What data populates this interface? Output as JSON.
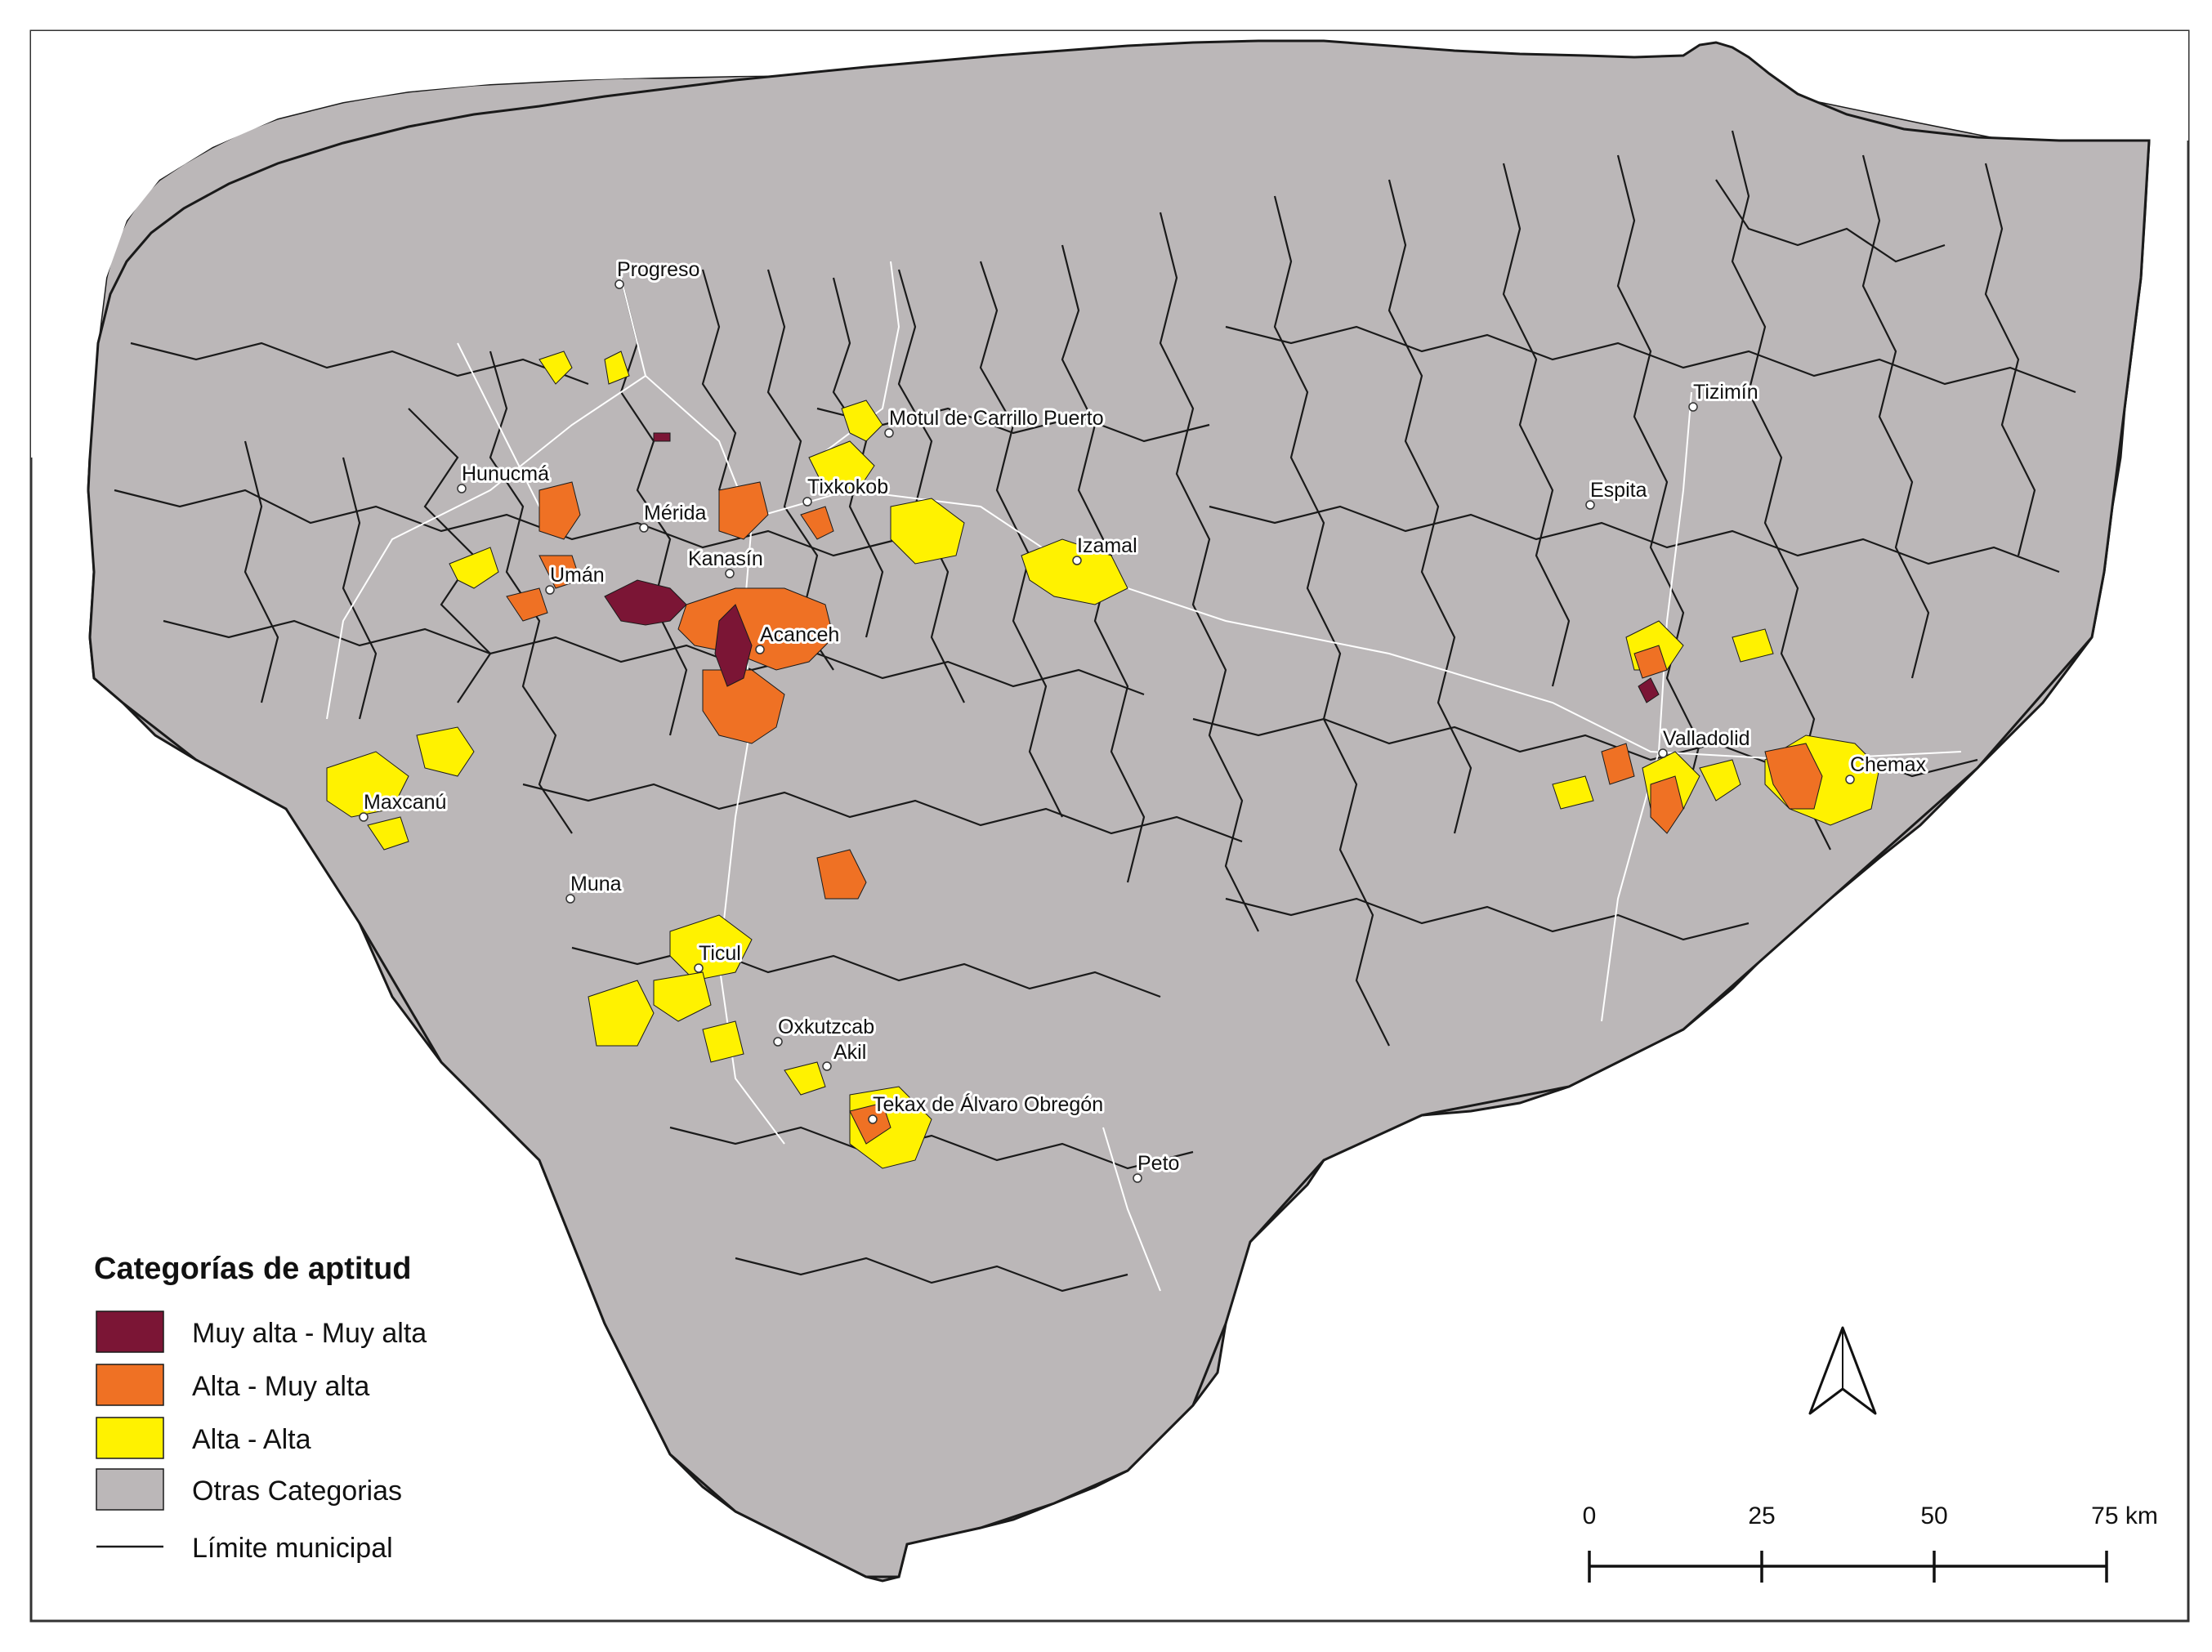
{
  "legend": {
    "title": "Categorías de aptitud",
    "items": [
      {
        "label": "Muy alta - Muy alta",
        "color": "#7b1535"
      },
      {
        "label": "Alta - Muy alta",
        "color": "#ef7124"
      },
      {
        "label": "Alta - Alta",
        "color": "#fff200"
      },
      {
        "label": "Otras Categorias",
        "color": "#bbb7b8"
      }
    ],
    "boundary_label": "Límite municipal"
  },
  "scale_bar": {
    "ticks": [
      "0",
      "25",
      "50",
      "75 km"
    ]
  },
  "north_arrow": {
    "icon": "north-arrow-icon"
  },
  "places": [
    {
      "name": "Progreso"
    },
    {
      "name": "Motul de Carrillo Puerto"
    },
    {
      "name": "Tizimín"
    },
    {
      "name": "Hunucmá"
    },
    {
      "name": "Mérida"
    },
    {
      "name": "Tixkokob"
    },
    {
      "name": "Espita"
    },
    {
      "name": "Kanasín"
    },
    {
      "name": "Izamal"
    },
    {
      "name": "Umán"
    },
    {
      "name": "Acanceh"
    },
    {
      "name": "Valladolid"
    },
    {
      "name": "Chemax"
    },
    {
      "name": "Maxcanú"
    },
    {
      "name": "Muna"
    },
    {
      "name": "Ticul"
    },
    {
      "name": "Oxkutzcab"
    },
    {
      "name": "Akil"
    },
    {
      "name": "Tekax de Álvaro Obregón"
    },
    {
      "name": "Peto"
    }
  ],
  "colors": {
    "land": "#bbb7b8",
    "boundary": "#1a1a1a",
    "road": "#ffffff",
    "muy_alta": "#7b1535",
    "alta_muy_alta": "#ef7124",
    "alta_alta": "#fff200"
  }
}
